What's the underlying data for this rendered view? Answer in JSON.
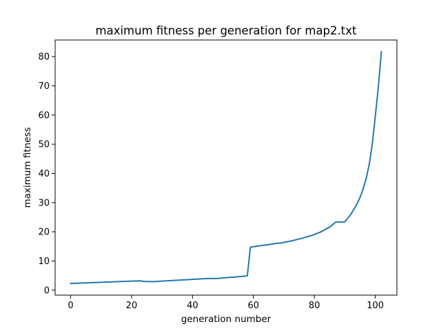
{
  "chart_data": {
    "type": "line",
    "title": "maximum fitness per generation for map2.txt",
    "xlabel": "generation number",
    "ylabel": "maximum fitness",
    "xlim": [
      -5.1,
      107.1
    ],
    "ylim": [
      -1.7,
      85.7
    ],
    "xticks": [
      0,
      20,
      40,
      60,
      80,
      100
    ],
    "yticks": [
      0,
      10,
      20,
      30,
      40,
      50,
      60,
      70,
      80
    ],
    "grid": false,
    "legend": "none",
    "series": [
      {
        "color": "#1f77b4",
        "x": [
          0,
          5,
          10,
          15,
          20,
          23,
          24,
          27,
          30,
          35,
          40,
          45,
          48,
          50,
          55,
          58,
          59,
          60,
          62,
          65,
          68,
          69,
          70,
          73,
          76,
          79,
          82,
          85,
          87,
          90,
          92,
          94,
          95,
          96,
          97,
          98,
          99,
          100,
          101,
          102
        ],
        "y": [
          2.3,
          2.5,
          2.7,
          2.9,
          3.1,
          3.2,
          3.0,
          2.9,
          3.1,
          3.4,
          3.7,
          4.0,
          4.0,
          4.2,
          4.6,
          4.9,
          14.7,
          14.9,
          15.2,
          15.6,
          16.1,
          16.1,
          16.4,
          17.0,
          17.8,
          18.7,
          19.9,
          21.6,
          23.3,
          23.4,
          26.0,
          29.5,
          31.8,
          34.6,
          38.2,
          43.0,
          49.8,
          59.5,
          69.5,
          81.7
        ]
      }
    ]
  }
}
